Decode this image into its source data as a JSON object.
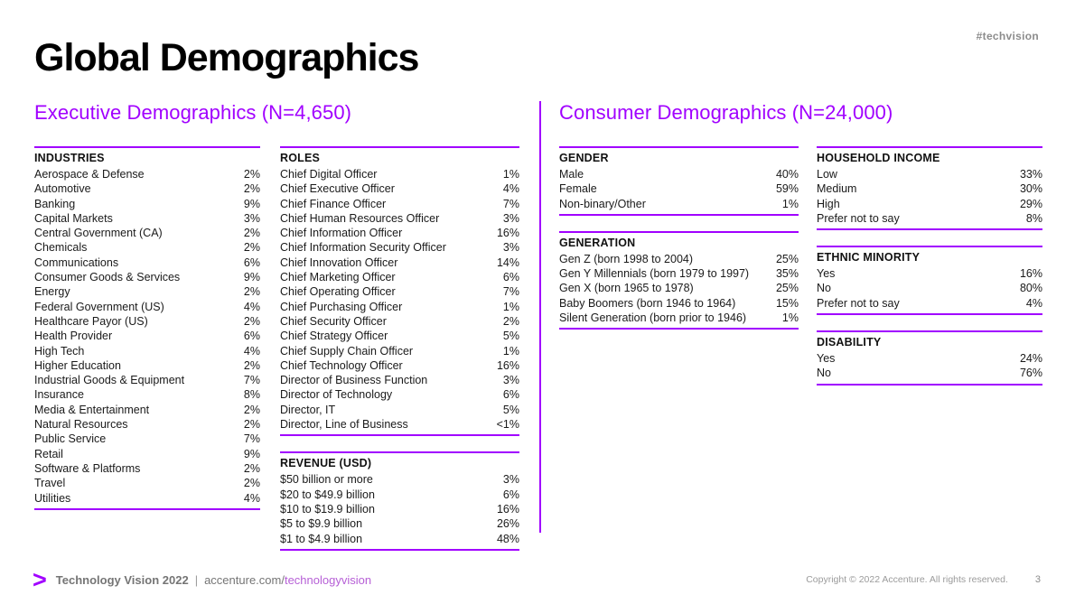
{
  "meta": {
    "hashtag": "#techvision",
    "copyright": "Copyright © 2022 Accenture. All rights reserved.",
    "page_number": "3"
  },
  "title": "Global Demographics",
  "colors": {
    "accent": "#a100ff"
  },
  "footer": {
    "arrow": ">",
    "brand": "Technology Vision 2022",
    "separator": "|",
    "site_prefix": "accenture.com/",
    "site_link": "technologyvision"
  },
  "sections": [
    {
      "title": "Executive Demographics (N=4,650)",
      "columns": [
        {
          "tables": [
            {
              "header": "INDUSTRIES",
              "rows": [
                [
                  "Aerospace & Defense",
                  "2%"
                ],
                [
                  "Automotive",
                  "2%"
                ],
                [
                  "Banking",
                  "9%"
                ],
                [
                  "Capital Markets",
                  "3%"
                ],
                [
                  "Central Government (CA)",
                  "2%"
                ],
                [
                  "Chemicals",
                  "2%"
                ],
                [
                  "Communications",
                  "6%"
                ],
                [
                  "Consumer Goods & Services",
                  "9%"
                ],
                [
                  "Energy",
                  "2%"
                ],
                [
                  "Federal Government (US)",
                  "4%"
                ],
                [
                  "Healthcare Payor (US)",
                  "2%"
                ],
                [
                  "Health Provider",
                  "6%"
                ],
                [
                  "High Tech",
                  "4%"
                ],
                [
                  "Higher Education",
                  "2%"
                ],
                [
                  "Industrial Goods & Equipment",
                  "7%"
                ],
                [
                  "Insurance",
                  "8%"
                ],
                [
                  "Media & Entertainment",
                  "2%"
                ],
                [
                  "Natural Resources",
                  "2%"
                ],
                [
                  "Public Service",
                  "7%"
                ],
                [
                  "Retail",
                  "9%"
                ],
                [
                  "Software & Platforms",
                  "2%"
                ],
                [
                  "Travel",
                  "2%"
                ],
                [
                  "Utilities",
                  "4%"
                ]
              ]
            }
          ]
        },
        {
          "tables": [
            {
              "header": "ROLES",
              "rows": [
                [
                  "Chief Digital Officer",
                  "1%"
                ],
                [
                  "Chief Executive Officer",
                  "4%"
                ],
                [
                  "Chief Finance Officer",
                  "7%"
                ],
                [
                  "Chief Human Resources Officer",
                  "3%"
                ],
                [
                  "Chief Information Officer",
                  "16%"
                ],
                [
                  "Chief Information Security Officer",
                  "3%"
                ],
                [
                  "Chief Innovation Officer",
                  "14%"
                ],
                [
                  "Chief Marketing Officer",
                  "6%"
                ],
                [
                  "Chief Operating Officer",
                  "7%"
                ],
                [
                  "Chief Purchasing Officer",
                  "1%"
                ],
                [
                  "Chief Security Officer",
                  "2%"
                ],
                [
                  "Chief Strategy Officer",
                  "5%"
                ],
                [
                  "Chief Supply Chain Officer",
                  "1%"
                ],
                [
                  "Chief Technology Officer",
                  "16%"
                ],
                [
                  "Director of Business Function",
                  "3%"
                ],
                [
                  "Director of Technology",
                  "6%"
                ],
                [
                  "Director, IT",
                  "5%"
                ],
                [
                  "Director, Line of Business",
                  "<1%"
                ]
              ]
            },
            {
              "header": "REVENUE (USD)",
              "rows": [
                [
                  "$50 billion or more",
                  "3%"
                ],
                [
                  "$20 to $49.9 billion",
                  "6%"
                ],
                [
                  "$10 to $19.9 billion",
                  "16%"
                ],
                [
                  "$5 to $9.9 billion",
                  "26%"
                ],
                [
                  "$1 to $4.9 billion",
                  "48%"
                ]
              ]
            }
          ]
        }
      ]
    },
    {
      "title": "Consumer Demographics (N=24,000)",
      "columns": [
        {
          "tables": [
            {
              "header": "GENDER",
              "rows": [
                [
                  "Male",
                  "40%"
                ],
                [
                  "Female",
                  "59%"
                ],
                [
                  "Non-binary/Other",
                  "1%"
                ]
              ]
            },
            {
              "header": "GENERATION",
              "rows": [
                [
                  "Gen Z (born 1998 to 2004)",
                  "25%"
                ],
                [
                  "Gen Y Millennials (born 1979 to 1997)",
                  "35%"
                ],
                [
                  "Gen X (born 1965 to 1978)",
                  "25%"
                ],
                [
                  "Baby Boomers (born 1946 to 1964)",
                  "15%"
                ],
                [
                  "Silent Generation (born prior to 1946)",
                  "1%"
                ]
              ]
            }
          ]
        },
        {
          "tables": [
            {
              "header": "HOUSEHOLD INCOME",
              "rows": [
                [
                  "Low",
                  "33%"
                ],
                [
                  "Medium",
                  "30%"
                ],
                [
                  "High",
                  "29%"
                ],
                [
                  "Prefer not to say",
                  "8%"
                ]
              ]
            },
            {
              "header": "ETHNIC MINORITY",
              "rows": [
                [
                  "Yes",
                  "16%"
                ],
                [
                  "No",
                  "80%"
                ],
                [
                  "Prefer not to say",
                  "4%"
                ]
              ]
            },
            {
              "header": "DISABILITY",
              "rows": [
                [
                  "Yes",
                  "24%"
                ],
                [
                  "No",
                  "76%"
                ]
              ]
            }
          ]
        }
      ]
    }
  ]
}
